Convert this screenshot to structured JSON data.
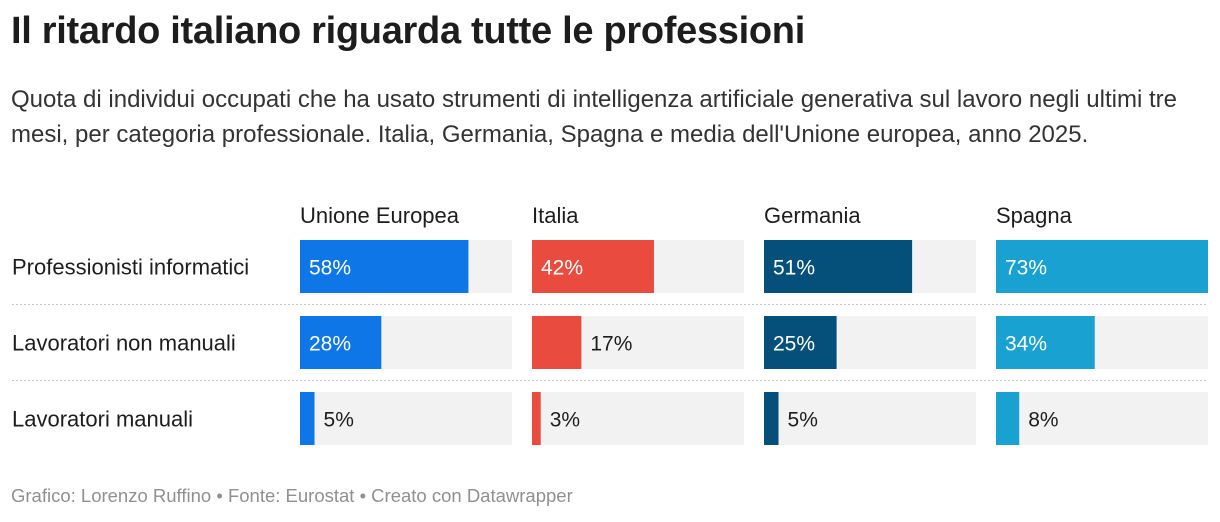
{
  "title": "Il ritardo italiano riguarda tutte le professioni",
  "subtitle": "Quota di individui occupati che ha usato strumenti di intelligenza artificiale generativa sul lavoro negli ultimi tre mesi, per categoria professionale. Italia, Germania, Spagna e media dell'Unione europea, anno 2025.",
  "footer": "Grafico: Lorenzo Ruffino • Fonte: Eurostat • Creato con Datawrapper",
  "chart_data": {
    "type": "bar",
    "categories": [
      "Professionisti informatici",
      "Lavoratori non manuali",
      "Lavoratori manuali"
    ],
    "series": [
      {
        "name": "Unione Europea",
        "values": [
          58,
          28,
          5
        ],
        "color": "#0f76e8"
      },
      {
        "name": "Italia",
        "values": [
          42,
          17,
          3
        ],
        "color": "#e94c3e"
      },
      {
        "name": "Germania",
        "values": [
          51,
          25,
          5
        ],
        "color": "#05507a"
      },
      {
        "name": "Spagna",
        "values": [
          73,
          34,
          8
        ],
        "color": "#19a2d1"
      }
    ],
    "value_suffix": "%",
    "ylim": [
      0,
      73
    ],
    "track_color": "#f2f2f2",
    "orientation": "horizontal",
    "layout": "small-multiples"
  }
}
